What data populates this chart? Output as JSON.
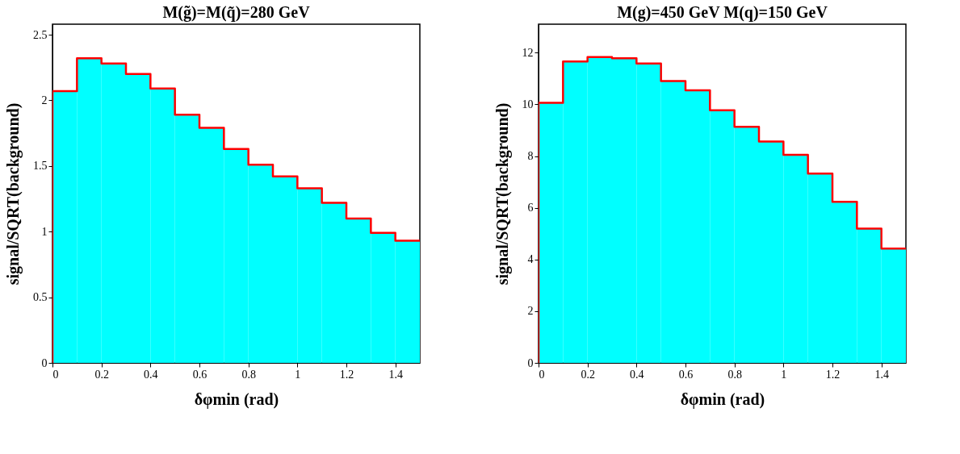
{
  "chart_data": [
    {
      "type": "histogram",
      "title": "M(g̃)=M(q̃)=280 GeV",
      "xlabel": "δφmin (rad)",
      "ylabel": "signal/SQRT(background)",
      "bins": [
        0,
        0.1,
        0.2,
        0.3,
        0.4,
        0.5,
        0.6,
        0.7,
        0.8,
        0.9,
        1.0,
        1.1,
        1.2,
        1.3,
        1.4,
        1.5
      ],
      "values": [
        2.07,
        2.32,
        2.28,
        2.2,
        2.09,
        1.89,
        1.79,
        1.63,
        1.51,
        1.42,
        1.33,
        1.22,
        1.1,
        0.99,
        0.93
      ],
      "color": "#00ffff",
      "series": [
        {
          "type": "line",
          "color": "#ff0000",
          "x": [
            0,
            0,
            0.1,
            0.1,
            0.2,
            0.2,
            0.3,
            0.3,
            0.4,
            0.4,
            0.5,
            0.5,
            0.6,
            0.6,
            0.7,
            0.7,
            0.8,
            0.8,
            0.9,
            0.9,
            1.0,
            1.0,
            1.1,
            1.1,
            1.2,
            1.2,
            1.3,
            1.3,
            1.4,
            1.4,
            1.5
          ],
          "values": [
            0,
            2.07,
            2.07,
            2.32,
            2.32,
            2.28,
            2.28,
            2.2,
            2.2,
            2.09,
            2.09,
            1.89,
            1.89,
            1.79,
            1.79,
            1.63,
            1.63,
            1.51,
            1.51,
            1.42,
            1.42,
            1.33,
            1.33,
            1.22,
            1.22,
            1.1,
            1.1,
            0.99,
            0.99,
            0.93,
            0.93
          ]
        }
      ],
      "xlim": [
        0,
        1.5
      ],
      "xticks": [
        0,
        0.2,
        0.4,
        0.6,
        0.8,
        1,
        1.2,
        1.4
      ],
      "ylim": [
        0,
        2.58
      ],
      "yticks": [
        0,
        0.5,
        1,
        1.5,
        2,
        2.5
      ]
    },
    {
      "type": "histogram",
      "title": "M(g)=450 GeV M(q)=150 GeV",
      "xlabel": "δφmin (rad)",
      "ylabel": "signal/SQRT(background)",
      "bins": [
        0,
        0.1,
        0.2,
        0.3,
        0.4,
        0.5,
        0.6,
        0.7,
        0.8,
        0.9,
        1.0,
        1.1,
        1.2,
        1.3,
        1.4,
        1.5
      ],
      "values": [
        10.06,
        11.66,
        11.83,
        11.78,
        11.58,
        10.9,
        10.54,
        9.77,
        9.13,
        8.56,
        8.05,
        7.32,
        6.23,
        5.19,
        4.42
      ],
      "color": "#00ffff",
      "series": [
        {
          "type": "line",
          "color": "#ff0000",
          "x": [
            0,
            0,
            0.1,
            0.1,
            0.2,
            0.2,
            0.3,
            0.3,
            0.4,
            0.4,
            0.5,
            0.5,
            0.6,
            0.6,
            0.7,
            0.7,
            0.8,
            0.8,
            0.9,
            0.9,
            1.0,
            1.0,
            1.1,
            1.1,
            1.2,
            1.2,
            1.3,
            1.3,
            1.4,
            1.4,
            1.5
          ],
          "values": [
            0,
            10.06,
            10.06,
            11.66,
            11.66,
            11.83,
            11.83,
            11.78,
            11.78,
            11.58,
            11.58,
            10.9,
            10.9,
            10.54,
            10.54,
            9.77,
            9.77,
            9.13,
            9.13,
            8.56,
            8.56,
            8.05,
            8.05,
            7.32,
            7.32,
            6.23,
            6.23,
            5.19,
            5.19,
            4.42,
            4.42
          ]
        }
      ],
      "xlim": [
        0,
        1.5
      ],
      "xticks": [
        0,
        0.2,
        0.4,
        0.6,
        0.8,
        1,
        1.2,
        1.4
      ],
      "ylim": [
        0,
        13.1
      ],
      "yticks": [
        0,
        2,
        4,
        6,
        8,
        10,
        12
      ]
    }
  ]
}
